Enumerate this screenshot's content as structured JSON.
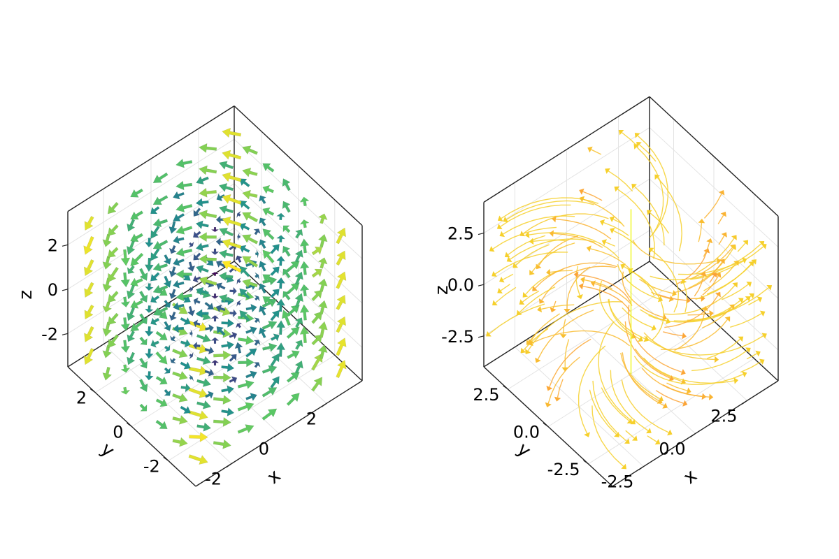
{
  "chart_data": [
    {
      "type": "3d-arrows",
      "colormap": "viridis",
      "colormap_stops": [
        "#440154",
        "#3b528b",
        "#21908d",
        "#5dc963",
        "#fde725"
      ],
      "xlabel": "x",
      "ylabel": "y",
      "zlabel": "z",
      "xlim": [
        -3.5,
        3.5
      ],
      "ylim": [
        -3.5,
        3.5
      ],
      "zlim": [
        -3.5,
        3.5
      ],
      "ticks": {
        "x": [
          {
            "v": -2,
            "label": "-2"
          },
          {
            "v": 0,
            "label": "0"
          },
          {
            "v": 2,
            "label": "2"
          }
        ],
        "y": [
          {
            "v": -2,
            "label": "-2"
          },
          {
            "v": 0,
            "label": "0"
          },
          {
            "v": 2,
            "label": "2"
          }
        ],
        "z": [
          {
            "v": -2,
            "label": "-2"
          },
          {
            "v": 0,
            "label": "0"
          },
          {
            "v": 2,
            "label": "2"
          }
        ]
      },
      "grid": true,
      "arrow_grid": {
        "min": -3,
        "max": 3,
        "step": 1
      },
      "field": "vortex about z with radial z-component"
    },
    {
      "type": "3d-streamplot",
      "colormap": "plasma",
      "colormap_stops": [
        "#0d0887",
        "#6a00a8",
        "#b12a90",
        "#e16462",
        "#fca636",
        "#f0f921"
      ],
      "xlabel": "x",
      "ylabel": "y",
      "zlabel": "z",
      "xlim": [
        -4,
        4
      ],
      "ylim": [
        -4,
        4
      ],
      "zlim": [
        -4,
        4
      ],
      "ticks": {
        "x": [
          {
            "v": -2.5,
            "label": "-2.5"
          },
          {
            "v": 0,
            "label": "0.0"
          },
          {
            "v": 2.5,
            "label": "2.5"
          }
        ],
        "y": [
          {
            "v": -2.5,
            "label": "-2.5"
          },
          {
            "v": 0,
            "label": "0.0"
          },
          {
            "v": 2.5,
            "label": "2.5"
          }
        ],
        "z": [
          {
            "v": -2.5,
            "label": "-2.5"
          },
          {
            "v": 0,
            "label": "0.0"
          },
          {
            "v": 2.5,
            "label": "2.5"
          }
        ]
      },
      "grid": true,
      "field": "streamlines emanating from a central vertical axis"
    }
  ]
}
